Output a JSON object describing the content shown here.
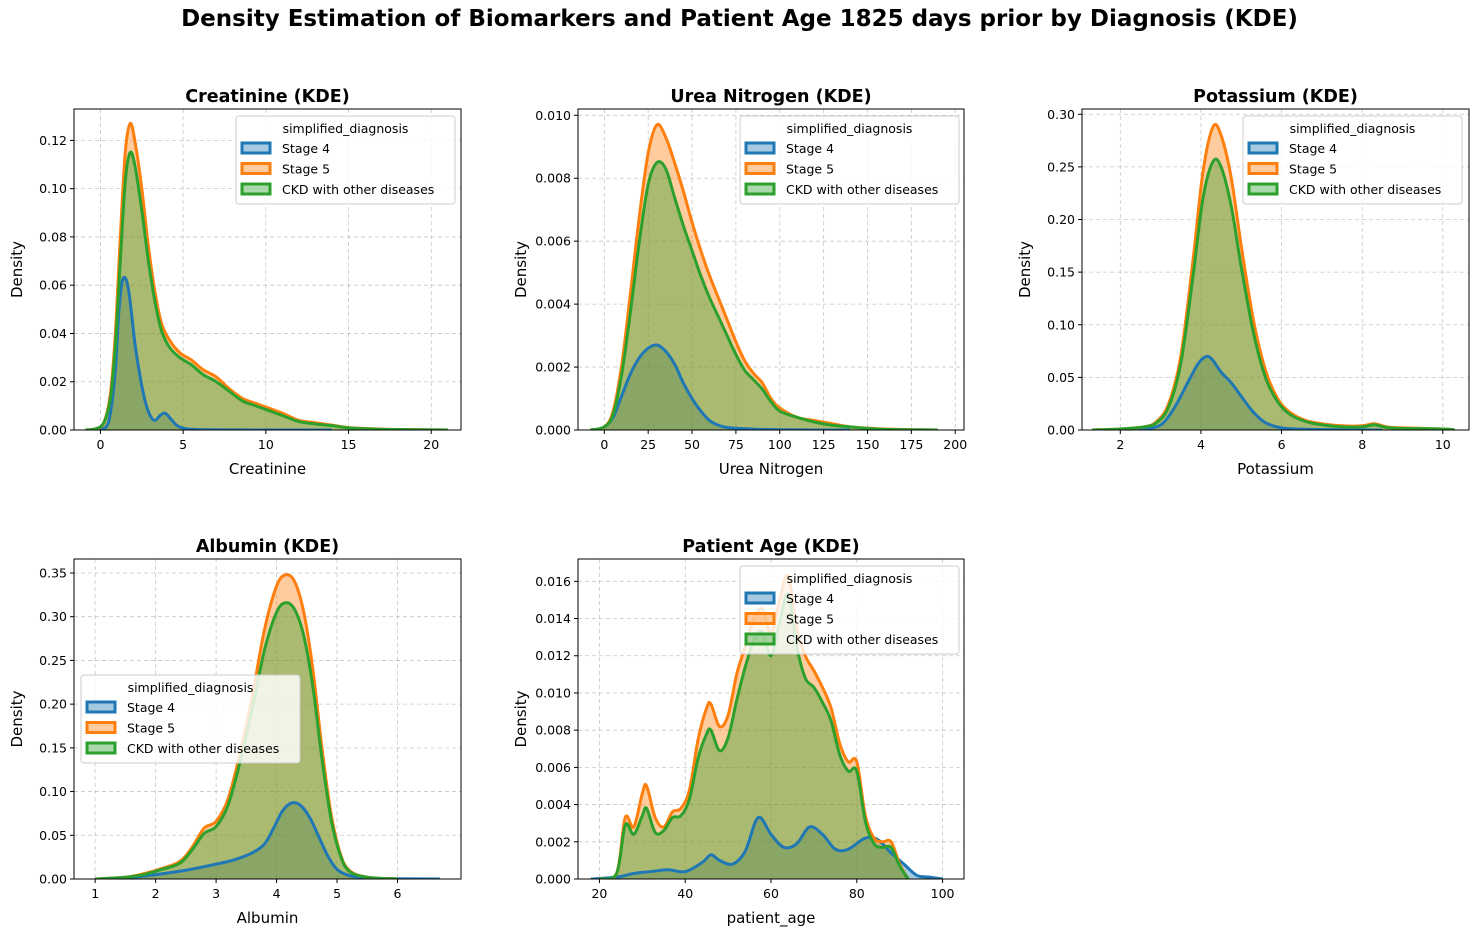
{
  "figure_title": "Density Estimation of Biomarkers and Patient Age 1825 days prior by Diagnosis (KDE)",
  "legend_title": "simplified_diagnosis",
  "series_styles": [
    {
      "name": "Stage 4",
      "color": "#1f77b4"
    },
    {
      "name": "Stage 5",
      "color": "#ff7f0e"
    },
    {
      "name": "CKD with other diseases",
      "color": "#2ca02c"
    }
  ],
  "chart_data": [
    {
      "type": "area",
      "title": "Creatinine (KDE)",
      "xlabel": "Creatinine",
      "ylabel": "Density",
      "xlim": [
        -1.6,
        21.8
      ],
      "ylim": [
        0,
        0.133
      ],
      "xticks": [
        0,
        5,
        10,
        15,
        20
      ],
      "yticks": [
        0.0,
        0.02,
        0.04,
        0.06,
        0.08,
        0.1,
        0.12
      ],
      "ytick_decimals": 2,
      "grid": true,
      "legend": "upper right",
      "series": [
        {
          "name": "Stage 4",
          "color": "#1f77b4",
          "x": [
            -0.5,
            0.3,
            0.6,
            0.9,
            1.1,
            1.3,
            1.5,
            1.7,
            1.9,
            2.1,
            2.4,
            2.7,
            3.0,
            3.3,
            3.6,
            3.9,
            4.2,
            4.6,
            5.0,
            5.5,
            6.5,
            8.0,
            10.0,
            14.0
          ],
          "y": [
            0,
            0.001,
            0.007,
            0.025,
            0.048,
            0.061,
            0.063,
            0.058,
            0.047,
            0.035,
            0.022,
            0.012,
            0.006,
            0.004,
            0.006,
            0.007,
            0.005,
            0.002,
            0.0008,
            0.0003,
            0.0001,
            5e-05,
            0,
            0
          ]
        },
        {
          "name": "Stage 5",
          "color": "#ff7f0e",
          "x": [
            -0.9,
            -0.3,
            0.2,
            0.6,
            0.9,
            1.2,
            1.5,
            1.8,
            2.1,
            2.5,
            2.9,
            3.3,
            3.7,
            4.2,
            4.8,
            5.5,
            6.2,
            7.0,
            7.8,
            8.6,
            9.4,
            10.2,
            11.0,
            12.0,
            13.0,
            14.0,
            15.0,
            16.5,
            18.0,
            21.0
          ],
          "y": [
            0,
            0.0005,
            0.003,
            0.015,
            0.04,
            0.08,
            0.115,
            0.127,
            0.119,
            0.1,
            0.076,
            0.057,
            0.044,
            0.037,
            0.032,
            0.029,
            0.025,
            0.022,
            0.017,
            0.013,
            0.011,
            0.009,
            0.007,
            0.004,
            0.003,
            0.002,
            0.001,
            0.0005,
            0.0002,
            0
          ]
        },
        {
          "name": "CKD with other diseases",
          "color": "#2ca02c",
          "x": [
            -0.9,
            -0.3,
            0.2,
            0.6,
            0.9,
            1.2,
            1.5,
            1.8,
            2.1,
            2.5,
            2.9,
            3.3,
            3.7,
            4.2,
            4.8,
            5.5,
            6.2,
            7.0,
            7.8,
            8.6,
            9.4,
            10.2,
            11.0,
            12.0,
            13.0,
            14.0,
            15.0,
            16.5,
            18.0,
            21.0
          ],
          "y": [
            0,
            0.0005,
            0.003,
            0.013,
            0.035,
            0.07,
            0.103,
            0.115,
            0.109,
            0.091,
            0.07,
            0.053,
            0.041,
            0.034,
            0.03,
            0.027,
            0.023,
            0.02,
            0.016,
            0.012,
            0.01,
            0.008,
            0.006,
            0.0035,
            0.0025,
            0.0018,
            0.0009,
            0.0004,
            0.0002,
            0
          ]
        }
      ]
    },
    {
      "type": "area",
      "title": "Urea Nitrogen (KDE)",
      "xlabel": "Urea Nitrogen",
      "ylabel": "Density",
      "xlim": [
        -15,
        205
      ],
      "ylim": [
        0,
        0.0102
      ],
      "xticks": [
        0,
        25,
        50,
        75,
        100,
        125,
        150,
        175,
        200
      ],
      "yticks": [
        0.0,
        0.002,
        0.004,
        0.006,
        0.008,
        0.01
      ],
      "ytick_decimals": 3,
      "grid": true,
      "legend": "upper right",
      "series": [
        {
          "name": "Stage 4",
          "color": "#1f77b4",
          "x": [
            -5,
            0,
            5,
            10,
            15,
            20,
            25,
            30,
            35,
            40,
            45,
            50,
            55,
            60,
            65,
            70,
            80,
            90,
            100,
            120,
            140
          ],
          "y": [
            0,
            0.0001,
            0.0004,
            0.0011,
            0.0018,
            0.0023,
            0.0026,
            0.0027,
            0.0025,
            0.0021,
            0.0015,
            0.001,
            0.0006,
            0.0003,
            0.00015,
            8e-05,
            4e-05,
            2e-05,
            1e-05,
            0,
            0
          ]
        },
        {
          "name": "Stage 5",
          "color": "#ff7f0e",
          "x": [
            -8,
            0,
            5,
            10,
            15,
            20,
            25,
            30,
            35,
            40,
            45,
            50,
            55,
            60,
            65,
            70,
            75,
            80,
            85,
            90,
            95,
            100,
            110,
            120,
            130,
            140,
            150,
            160,
            175,
            190
          ],
          "y": [
            0,
            0.0001,
            0.0006,
            0.0021,
            0.0044,
            0.0068,
            0.0088,
            0.0097,
            0.0093,
            0.0085,
            0.0076,
            0.0066,
            0.0057,
            0.0049,
            0.0042,
            0.0035,
            0.0028,
            0.0022,
            0.0018,
            0.0015,
            0.001,
            0.0007,
            0.0004,
            0.0003,
            0.0002,
            0.0001,
            6e-05,
            3e-05,
            1e-05,
            0
          ]
        },
        {
          "name": "CKD with other diseases",
          "color": "#2ca02c",
          "x": [
            -8,
            0,
            5,
            10,
            15,
            20,
            25,
            30,
            35,
            40,
            45,
            50,
            55,
            60,
            65,
            70,
            75,
            80,
            85,
            90,
            95,
            100,
            110,
            120,
            130,
            140,
            150,
            160,
            175,
            190
          ],
          "y": [
            0,
            0.0001,
            0.0005,
            0.0018,
            0.0038,
            0.006,
            0.0078,
            0.0085,
            0.0083,
            0.0074,
            0.0065,
            0.0057,
            0.0049,
            0.0042,
            0.0036,
            0.003,
            0.0024,
            0.0019,
            0.0016,
            0.0013,
            0.0009,
            0.0006,
            0.0004,
            0.00025,
            0.00015,
            0.0001,
            5e-05,
            2e-05,
            1e-05,
            0
          ]
        }
      ]
    },
    {
      "type": "area",
      "title": "Potassium (KDE)",
      "xlabel": "Potassium",
      "ylabel": "Density",
      "xlim": [
        1.05,
        10.65
      ],
      "ylim": [
        0,
        0.305
      ],
      "xticks": [
        2,
        4,
        6,
        8,
        10
      ],
      "yticks": [
        0.0,
        0.05,
        0.1,
        0.15,
        0.2,
        0.25,
        0.3
      ],
      "ytick_decimals": 2,
      "grid": true,
      "legend": "upper right",
      "series": [
        {
          "name": "Stage 4",
          "color": "#1f77b4",
          "x": [
            2.2,
            2.8,
            3.1,
            3.4,
            3.7,
            3.95,
            4.15,
            4.3,
            4.5,
            4.75,
            5.0,
            5.3,
            5.6,
            6.0,
            6.5,
            7.5,
            8.5
          ],
          "y": [
            0,
            0.002,
            0.008,
            0.025,
            0.047,
            0.064,
            0.07,
            0.066,
            0.055,
            0.045,
            0.032,
            0.017,
            0.007,
            0.002,
            0.0008,
            0.0002,
            0
          ]
        },
        {
          "name": "Stage 5",
          "color": "#ff7f0e",
          "x": [
            1.3,
            2.0,
            2.6,
            2.9,
            3.2,
            3.5,
            3.8,
            4.05,
            4.3,
            4.5,
            4.75,
            5.0,
            5.3,
            5.6,
            5.9,
            6.2,
            6.6,
            7.0,
            7.5,
            8.0,
            8.3,
            8.6,
            9.0,
            10.0,
            10.3
          ],
          "y": [
            0,
            0.001,
            0.003,
            0.008,
            0.025,
            0.07,
            0.16,
            0.245,
            0.288,
            0.28,
            0.24,
            0.175,
            0.105,
            0.057,
            0.03,
            0.017,
            0.009,
            0.006,
            0.004,
            0.004,
            0.006,
            0.003,
            0.002,
            0.001,
            0
          ]
        },
        {
          "name": "CKD with other diseases",
          "color": "#2ca02c",
          "x": [
            1.3,
            2.0,
            2.6,
            2.9,
            3.2,
            3.5,
            3.8,
            4.05,
            4.3,
            4.5,
            4.75,
            5.0,
            5.3,
            5.6,
            5.9,
            6.2,
            6.6,
            7.0,
            7.5,
            8.0,
            8.3,
            8.6,
            9.0,
            10.0,
            10.3
          ],
          "y": [
            0,
            0.001,
            0.003,
            0.007,
            0.022,
            0.063,
            0.145,
            0.22,
            0.255,
            0.25,
            0.213,
            0.155,
            0.093,
            0.05,
            0.027,
            0.015,
            0.008,
            0.005,
            0.003,
            0.003,
            0.005,
            0.0025,
            0.0015,
            0.001,
            0
          ]
        }
      ]
    },
    {
      "type": "area",
      "title": "Albumin (KDE)",
      "xlabel": "Albumin",
      "ylabel": "Density",
      "xlim": [
        0.65,
        7.05
      ],
      "ylim": [
        0,
        0.366
      ],
      "xticks": [
        1,
        2,
        3,
        4,
        5,
        6
      ],
      "yticks": [
        0.0,
        0.05,
        0.1,
        0.15,
        0.2,
        0.25,
        0.3,
        0.35
      ],
      "ytick_decimals": 2,
      "grid": true,
      "legend": "center left",
      "series": [
        {
          "name": "Stage 4",
          "color": "#1f77b4",
          "x": [
            1.0,
            1.5,
            2.0,
            2.5,
            3.0,
            3.3,
            3.6,
            3.8,
            3.95,
            4.1,
            4.25,
            4.4,
            4.55,
            4.7,
            4.85,
            5.0,
            5.2,
            5.5,
            6.0,
            6.7
          ],
          "y": [
            0,
            0.001,
            0.005,
            0.01,
            0.017,
            0.022,
            0.03,
            0.04,
            0.058,
            0.078,
            0.087,
            0.084,
            0.07,
            0.048,
            0.026,
            0.011,
            0.004,
            0.001,
            0.0003,
            0
          ]
        },
        {
          "name": "Stage 5",
          "color": "#ff7f0e",
          "x": [
            1.0,
            1.5,
            1.8,
            2.1,
            2.4,
            2.6,
            2.8,
            3.0,
            3.2,
            3.4,
            3.6,
            3.8,
            4.0,
            4.15,
            4.3,
            4.45,
            4.6,
            4.75,
            4.9,
            5.05,
            5.2,
            5.5,
            6.0
          ],
          "y": [
            0,
            0.002,
            0.006,
            0.012,
            0.02,
            0.036,
            0.058,
            0.066,
            0.092,
            0.145,
            0.21,
            0.285,
            0.335,
            0.348,
            0.34,
            0.305,
            0.24,
            0.15,
            0.075,
            0.03,
            0.01,
            0.002,
            0
          ]
        },
        {
          "name": "CKD with other diseases",
          "color": "#2ca02c",
          "x": [
            1.0,
            1.5,
            1.8,
            2.1,
            2.4,
            2.6,
            2.8,
            3.0,
            3.2,
            3.4,
            3.6,
            3.8,
            4.0,
            4.15,
            4.3,
            4.45,
            4.6,
            4.75,
            4.9,
            5.05,
            5.2,
            5.5,
            6.0
          ],
          "y": [
            0,
            0.002,
            0.005,
            0.011,
            0.018,
            0.033,
            0.052,
            0.06,
            0.085,
            0.135,
            0.195,
            0.262,
            0.305,
            0.316,
            0.308,
            0.278,
            0.22,
            0.138,
            0.069,
            0.028,
            0.009,
            0.002,
            0
          ]
        }
      ]
    },
    {
      "type": "area",
      "title": "Patient Age (KDE)",
      "xlabel": "patient_age",
      "ylabel": "Density",
      "xlim": [
        15,
        105
      ],
      "ylim": [
        0,
        0.0172
      ],
      "xticks": [
        20,
        40,
        60,
        80,
        100
      ],
      "yticks": [
        0.0,
        0.002,
        0.004,
        0.006,
        0.008,
        0.01,
        0.012,
        0.014,
        0.016
      ],
      "ytick_decimals": 3,
      "grid": true,
      "legend": "upper right",
      "series": [
        {
          "name": "Stage 4",
          "color": "#1f77b4",
          "x": [
            18,
            24,
            28,
            32,
            36,
            40,
            44,
            46,
            48,
            51,
            54,
            57,
            60,
            63,
            66,
            69,
            72,
            75,
            78,
            82,
            85,
            88,
            91,
            94,
            97,
            100
          ],
          "y": [
            0,
            0.0001,
            0.0003,
            0.0004,
            0.0005,
            0.0004,
            0.0009,
            0.0013,
            0.001,
            0.0008,
            0.0015,
            0.0033,
            0.0024,
            0.0017,
            0.0019,
            0.0028,
            0.0024,
            0.0016,
            0.0016,
            0.0022,
            0.0021,
            0.0014,
            0.0008,
            0.0002,
            0.0001,
            0
          ]
        },
        {
          "name": "Stage 5",
          "color": "#ff7f0e",
          "x": [
            20,
            24,
            26,
            28,
            30,
            31,
            33,
            35,
            37,
            39,
            41,
            43,
            45,
            46,
            48,
            50,
            52,
            54,
            56,
            58,
            60,
            62,
            64,
            66,
            68,
            70,
            72,
            74,
            76,
            78,
            80,
            82,
            84,
            86,
            88,
            90,
            92
          ],
          "y": [
            0,
            0.0003,
            0.0033,
            0.0028,
            0.0046,
            0.005,
            0.0033,
            0.0028,
            0.0036,
            0.0038,
            0.0048,
            0.0075,
            0.0092,
            0.0094,
            0.0082,
            0.0088,
            0.011,
            0.0125,
            0.014,
            0.0145,
            0.0132,
            0.015,
            0.0163,
            0.0135,
            0.012,
            0.0112,
            0.0103,
            0.0092,
            0.0073,
            0.0063,
            0.0063,
            0.0034,
            0.0022,
            0.002,
            0.002,
            0.0008,
            0
          ]
        },
        {
          "name": "CKD with other diseases",
          "color": "#2ca02c",
          "x": [
            20,
            24,
            26,
            28,
            30,
            31,
            33,
            35,
            37,
            39,
            41,
            43,
            45,
            46,
            48,
            50,
            52,
            54,
            56,
            58,
            60,
            62,
            64,
            66,
            68,
            70,
            72,
            74,
            76,
            78,
            80,
            82,
            84,
            86,
            88,
            90,
            92
          ],
          "y": [
            0,
            0.0003,
            0.0029,
            0.0024,
            0.0034,
            0.0038,
            0.0025,
            0.0026,
            0.0033,
            0.0034,
            0.0043,
            0.0065,
            0.0078,
            0.008,
            0.0069,
            0.0076,
            0.0096,
            0.0114,
            0.0128,
            0.0133,
            0.012,
            0.0138,
            0.0153,
            0.0125,
            0.0108,
            0.0103,
            0.0095,
            0.0085,
            0.0067,
            0.0058,
            0.0058,
            0.0031,
            0.0019,
            0.0017,
            0.0017,
            0.0007,
            0
          ]
        }
      ]
    }
  ]
}
